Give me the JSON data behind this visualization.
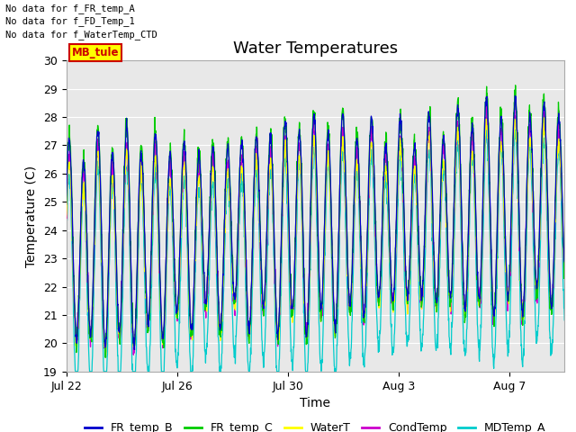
{
  "title": "Water Temperatures",
  "xlabel": "Time",
  "ylabel": "Temperature (C)",
  "ylim": [
    19.0,
    30.0
  ],
  "yticks": [
    19.0,
    20.0,
    21.0,
    22.0,
    23.0,
    24.0,
    25.0,
    26.0,
    27.0,
    28.0,
    29.0,
    30.0
  ],
  "background_color": "#e8e8e8",
  "fig_background": "#ffffff",
  "no_data_lines": [
    "No data for f_FR_temp_A",
    "No data for f_FD_Temp_1",
    "No data for f_WaterTemp_CTD"
  ],
  "mb_tule_label": "MB_tule",
  "mb_tule_color": "#cc0000",
  "mb_tule_bg": "#ffff00",
  "legend_entries": [
    {
      "label": "FR_temp_B",
      "color": "#0000cc"
    },
    {
      "label": "FR_temp_C",
      "color": "#00cc00"
    },
    {
      "label": "WaterT",
      "color": "#ffff00"
    },
    {
      "label": "CondTemp",
      "color": "#cc00cc"
    },
    {
      "label": "MDTemp_A",
      "color": "#00cccc"
    }
  ],
  "x_tick_labels": [
    "Jul 22",
    "Jul 26",
    "Jul 30",
    "Aug 3",
    "Aug 7"
  ],
  "x_tick_positions": [
    0,
    4,
    8,
    12,
    16
  ],
  "total_days": 18,
  "seed": 42
}
